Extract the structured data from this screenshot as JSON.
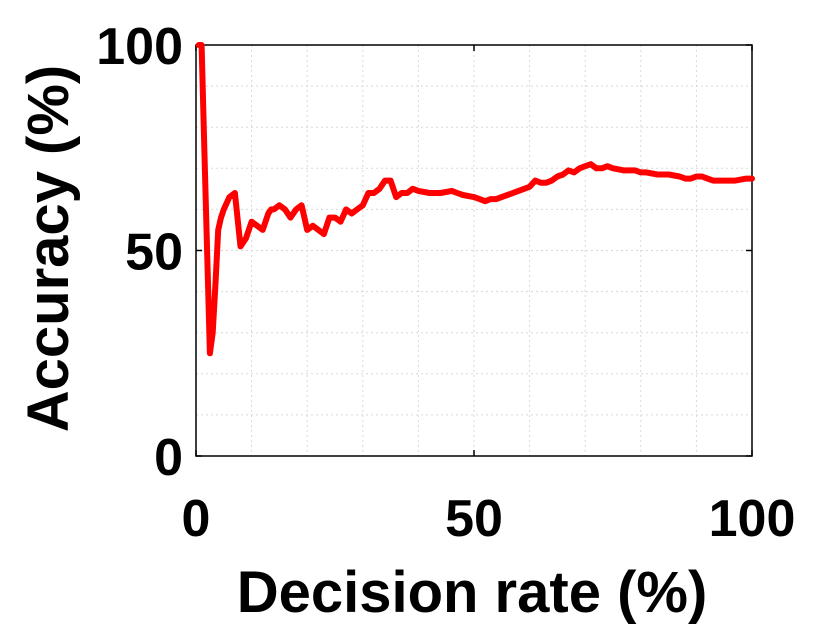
{
  "chart_data": {
    "type": "line",
    "title": "",
    "xlabel": "Decision rate (%)",
    "ylabel": "Accuracy (%)",
    "xlim": [
      0,
      100
    ],
    "ylim": [
      0,
      100
    ],
    "grid": true,
    "x_ticks": [
      0,
      50,
      100
    ],
    "y_ticks": [
      0,
      50,
      100
    ],
    "x_tick_labels": [
      "0",
      "50",
      "100"
    ],
    "y_tick_labels": [
      "0",
      "50",
      "100"
    ],
    "line_color": "#ff0000",
    "series": [
      {
        "x": [
          0.5,
          1.0,
          1.5,
          2.0,
          2.5,
          3.0,
          3.5,
          4.0,
          4.5,
          5.0,
          6.0,
          7.0,
          8.0,
          9.0,
          9.5,
          10.0,
          11.0,
          12.0,
          13.0,
          13.5,
          14.0,
          15.0,
          16.0,
          17.0,
          18.0,
          19.0,
          20.0,
          21.0,
          22.0,
          23.0,
          24.0,
          25.0,
          26.0,
          27.0,
          28.0,
          29.0,
          30.0,
          31.0,
          32.0,
          33.0,
          34.0,
          35.0,
          36.0,
          37.0,
          38.0,
          39.0,
          40.0,
          42.0,
          44.0,
          46.0,
          47.0,
          48.0,
          50.0,
          51.0,
          52.0,
          53.0,
          54.0,
          56.0,
          58.0,
          60.0,
          61.0,
          62.0,
          63.0,
          64.0,
          65.0,
          66.0,
          67.0,
          68.0,
          69.0,
          70.0,
          71.0,
          72.0,
          73.0,
          74.0,
          75.0,
          77.0,
          79.0,
          80.0,
          81.0,
          83.0,
          85.0,
          87.0,
          88.0,
          89.0,
          90.0,
          91.0,
          92.0,
          93.0,
          95.0,
          97.0,
          99.0,
          100.0
        ],
        "y": [
          100,
          100,
          75,
          50,
          25,
          30,
          42,
          55,
          58,
          60,
          63,
          64,
          51,
          53,
          55,
          57,
          56,
          55,
          59,
          60,
          60,
          61,
          60,
          58,
          60,
          61,
          55,
          56,
          55,
          54,
          58,
          58,
          57,
          60,
          59,
          60,
          61,
          64,
          64,
          65,
          67,
          67,
          63,
          64,
          64,
          65,
          64.5,
          64,
          64,
          64.5,
          64,
          63.5,
          63,
          62.5,
          62,
          62.5,
          62.5,
          63.5,
          64.5,
          65.5,
          67,
          66.5,
          66.5,
          67,
          68,
          68.5,
          69.5,
          69,
          70,
          70.5,
          71,
          70,
          70,
          70.5,
          70,
          69.5,
          69.5,
          69,
          69,
          68.5,
          68.5,
          68,
          67.5,
          67.5,
          68,
          68,
          67.5,
          67,
          67,
          67,
          67.5,
          67.5
        ]
      }
    ]
  }
}
